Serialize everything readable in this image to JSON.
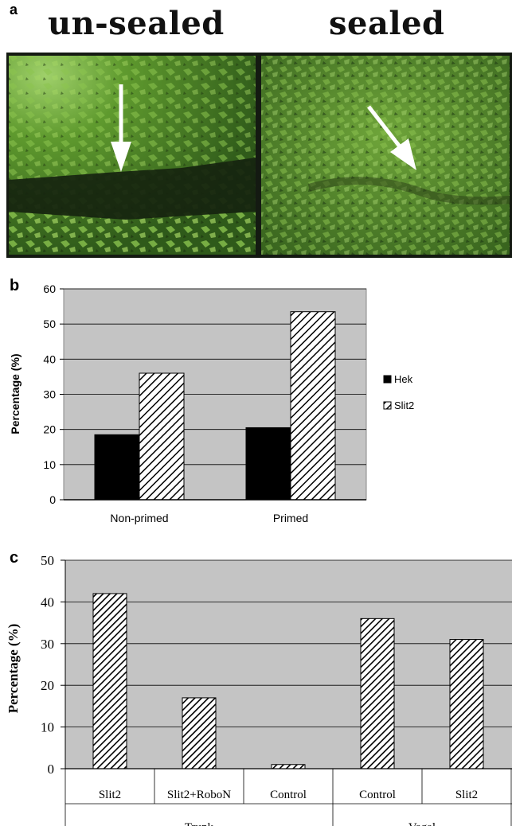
{
  "figure": {
    "panel_a": {
      "letter": "a",
      "titles": [
        "un-sealed",
        "sealed"
      ]
    },
    "panel_b": {
      "letter": "b"
    },
    "panel_c": {
      "letter": "c"
    }
  },
  "chart_data": [
    {
      "type": "bar",
      "ylabel": "Percentage (%)",
      "ylim": [
        0,
        60
      ],
      "yticks": [
        0,
        10,
        20,
        30,
        40,
        50,
        60
      ],
      "grid": true,
      "legend_position": "right",
      "categories": [
        "Non-primed",
        "Primed"
      ],
      "series": [
        {
          "name": "Hek",
          "values": [
            18.5,
            20.5
          ],
          "color": "#000000"
        },
        {
          "name": "Slit2",
          "values": [
            36,
            53.5
          ],
          "color": "hatched"
        }
      ]
    },
    {
      "type": "bar",
      "ylabel": "Percentage (%)",
      "ylim": [
        0,
        50
      ],
      "yticks": [
        0,
        10,
        20,
        30,
        40,
        50
      ],
      "grid": true,
      "categories": [
        "Slit2",
        "Slit2+RoboN",
        "Control",
        "Control",
        "Slit2"
      ],
      "groups": [
        {
          "label": "Trunk",
          "categories": [
            "Slit2",
            "Slit2+RoboN",
            "Control"
          ]
        },
        {
          "label": "Vagal",
          "categories": [
            "Control",
            "Slit2"
          ]
        }
      ],
      "values": [
        42,
        17,
        1,
        36,
        31
      ]
    }
  ]
}
